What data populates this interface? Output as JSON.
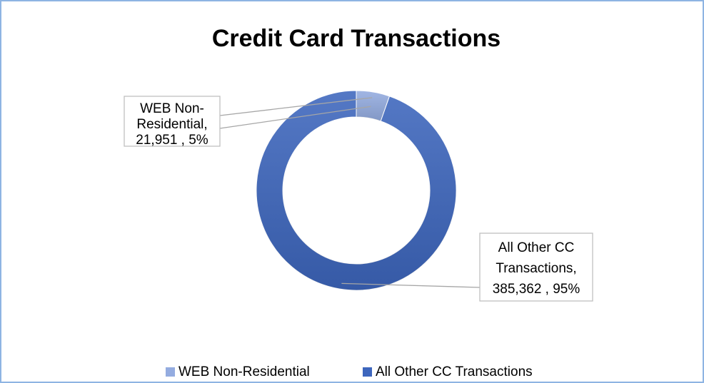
{
  "chart_data": {
    "type": "donut",
    "title": "Credit Card Transactions",
    "categories": [
      "WEB Non-Residential",
      "All Other CC Transactions"
    ],
    "values": [
      21951,
      385362
    ],
    "value_labels": [
      "21,951 , 5%",
      "385,362 , 95%"
    ],
    "label_names": [
      [
        "WEB Non-",
        "Residential,"
      ],
      [
        "All Other CC",
        "Transactions,"
      ]
    ],
    "colors": [
      "#94ace0",
      "#3d66bd"
    ],
    "legend": "bottom"
  }
}
